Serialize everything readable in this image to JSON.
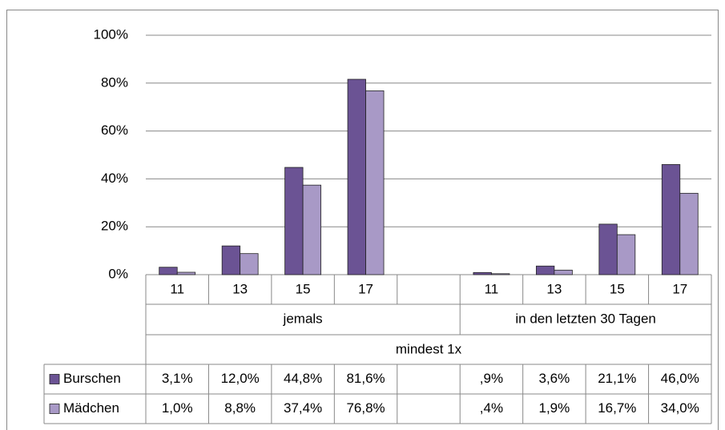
{
  "chart_data": {
    "type": "bar",
    "categories": [
      "11",
      "13",
      "15",
      "17",
      null,
      "11",
      "13",
      "15",
      "17"
    ],
    "category_groups": [
      "jemals",
      "in den letzten 30 Tagen"
    ],
    "super_group": "mindest 1x",
    "series": [
      {
        "name": "Burschen",
        "color": "#6b5394",
        "values": [
          3.1,
          12.0,
          44.8,
          81.6,
          null,
          0.9,
          3.6,
          21.1,
          46.0
        ],
        "value_labels": [
          "3,1%",
          "12,0%",
          "44,8%",
          "81,6%",
          null,
          ",9%",
          "3,6%",
          "21,1%",
          "46,0%"
        ]
      },
      {
        "name": "Mädchen",
        "color": "#a899c6",
        "values": [
          1.0,
          8.8,
          37.4,
          76.8,
          null,
          0.4,
          1.9,
          16.7,
          34.0
        ],
        "value_labels": [
          "1,0%",
          "8,8%",
          "37,4%",
          "76,8%",
          null,
          ",4%",
          "1,9%",
          "16,7%",
          "34,0%"
        ]
      }
    ],
    "ylim": [
      0,
      100
    ],
    "yticks": [
      {
        "value": 0,
        "label": "0%"
      },
      {
        "value": 20,
        "label": "20%"
      },
      {
        "value": 40,
        "label": "40%"
      },
      {
        "value": 60,
        "label": "60%"
      },
      {
        "value": 80,
        "label": "80%"
      },
      {
        "value": 100,
        "label": "100%"
      }
    ],
    "grid": true
  }
}
